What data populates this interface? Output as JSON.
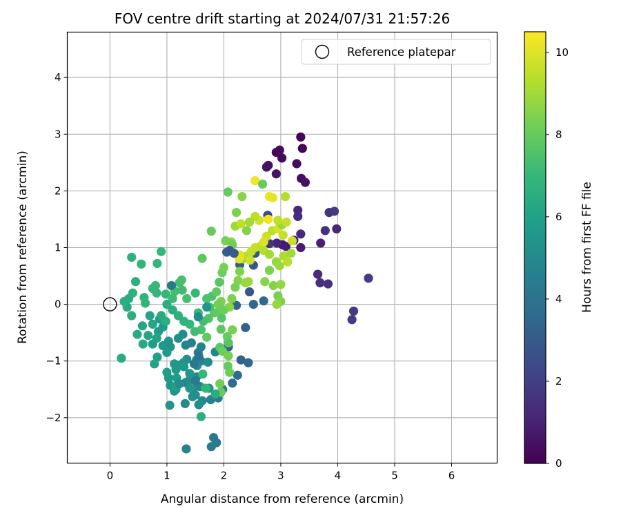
{
  "chart_data": {
    "type": "scatter",
    "title": "FOV centre drift starting at 2024/07/31 21:57:26",
    "xlabel": "Angular distance from reference (arcmin)",
    "ylabel": "Rotation from reference (arcmin)",
    "xlim": [
      -0.75,
      6.8
    ],
    "ylim": [
      -2.8,
      4.8
    ],
    "xticks": [
      "0",
      "1",
      "2",
      "3",
      "4",
      "5",
      "6"
    ],
    "yticks": [
      "−2",
      "−1",
      "0",
      "1",
      "2",
      "3",
      "4"
    ],
    "grid": true,
    "legend_position": "top-right",
    "legend": [
      {
        "label": "Reference platepar",
        "marker": "open-circle",
        "x": 0,
        "y": 0
      }
    ],
    "colorbar": {
      "label": "Hours from first FF file",
      "range": [
        0,
        10.5
      ],
      "ticks": [
        "0",
        "2",
        "4",
        "6",
        "8",
        "10"
      ],
      "colormap": "viridis"
    },
    "points": [
      [
        3.35,
        2.95,
        0.1
      ],
      [
        3.38,
        2.75,
        0.1
      ],
      [
        2.98,
        2.72,
        0.3
      ],
      [
        3.02,
        2.58,
        0.3
      ],
      [
        2.92,
        2.68,
        0.2
      ],
      [
        2.78,
        2.45,
        0.4
      ],
      [
        2.75,
        2.42,
        0.5
      ],
      [
        3.28,
        2.48,
        0.3
      ],
      [
        2.92,
        2.3,
        0.6
      ],
      [
        3.36,
        2.22,
        0.4
      ],
      [
        3.43,
        2.15,
        0.5
      ],
      [
        3.3,
        1.66,
        1.2
      ],
      [
        3.3,
        1.55,
        1.3
      ],
      [
        3.85,
        1.62,
        1.6
      ],
      [
        3.94,
        1.64,
        1.8
      ],
      [
        3.78,
        1.3,
        1.5
      ],
      [
        3.98,
        1.33,
        1.2
      ],
      [
        3.35,
        1.24,
        1.2
      ],
      [
        3.23,
        1.13,
        0.9
      ],
      [
        3.7,
        1.08,
        1.0
      ],
      [
        3.35,
        1.0,
        0.8
      ],
      [
        3.03,
        1.05,
        0.7
      ],
      [
        3.09,
        1.02,
        0.8
      ],
      [
        2.93,
        1.08,
        1.1
      ],
      [
        2.8,
        1.07,
        1.6
      ],
      [
        2.77,
        1.57,
        2.4
      ],
      [
        2.55,
        0.9,
        2.8
      ],
      [
        2.05,
        0.92,
        3.2
      ],
      [
        2.28,
        0.7,
        3.0
      ],
      [
        2.52,
        0.69,
        2.9
      ],
      [
        3.65,
        0.53,
        1.3
      ],
      [
        3.69,
        0.38,
        1.4
      ],
      [
        3.83,
        0.36,
        1.5
      ],
      [
        4.54,
        0.46,
        1.9
      ],
      [
        4.28,
        -0.12,
        1.8
      ],
      [
        4.25,
        -0.27,
        1.9
      ],
      [
        2.7,
        0.06,
        3.6
      ],
      [
        2.52,
        0.0,
        3.5
      ],
      [
        2.22,
        -0.02,
        3.4
      ],
      [
        2.38,
        -0.41,
        3.3
      ],
      [
        2.08,
        -0.75,
        3.1
      ],
      [
        2.3,
        -0.98,
        3.3
      ],
      [
        2.43,
        -1.03,
        3.5
      ],
      [
        2.24,
        -1.25,
        3.7
      ],
      [
        2.15,
        -1.39,
        3.6
      ],
      [
        1.98,
        -1.5,
        4.2
      ],
      [
        1.82,
        -2.35,
        4.3
      ],
      [
        1.87,
        -2.44,
        4.2
      ],
      [
        1.78,
        -2.51,
        4.4
      ],
      [
        1.34,
        -2.55,
        4.7
      ],
      [
        1.9,
        -1.65,
        4.4
      ],
      [
        1.77,
        -1.68,
        4.6
      ],
      [
        1.62,
        -1.7,
        5.0
      ],
      [
        1.56,
        -1.77,
        5.2
      ],
      [
        1.32,
        -1.75,
        5.0
      ],
      [
        1.05,
        -1.78,
        5.4
      ],
      [
        1.45,
        -1.63,
        5.3
      ],
      [
        1.33,
        -1.38,
        4.8
      ],
      [
        1.4,
        -1.33,
        5.2
      ],
      [
        1.52,
        -1.28,
        4.9
      ],
      [
        1.16,
        -1.5,
        5.4
      ],
      [
        1.06,
        -1.43,
        5.5
      ],
      [
        1.13,
        -1.53,
        5.5
      ],
      [
        1.03,
        -1.3,
        5.6
      ],
      [
        1.0,
        -1.2,
        5.8
      ],
      [
        1.16,
        -1.15,
        5.7
      ],
      [
        1.13,
        -1.05,
        5.5
      ],
      [
        1.24,
        -1.07,
        5.6
      ],
      [
        1.29,
        -1.03,
        5.4
      ],
      [
        1.35,
        -0.97,
        5.3
      ],
      [
        1.52,
        -0.98,
        4.9
      ],
      [
        1.6,
        -1.0,
        4.7
      ],
      [
        1.53,
        -1.08,
        5.0
      ],
      [
        1.72,
        -1.02,
        5.1
      ],
      [
        1.85,
        -0.84,
        4.8
      ],
      [
        1.6,
        -0.75,
        4.7
      ],
      [
        1.55,
        -0.85,
        4.5
      ],
      [
        1.43,
        -0.68,
        4.6
      ],
      [
        1.33,
        -0.72,
        4.8
      ],
      [
        1.28,
        -0.53,
        5.0
      ],
      [
        1.2,
        -0.6,
        5.2
      ],
      [
        1.06,
        -0.75,
        5.4
      ],
      [
        1.0,
        -0.85,
        5.6
      ],
      [
        0.83,
        -0.93,
        5.9
      ],
      [
        0.93,
        -0.73,
        5.6
      ],
      [
        1.03,
        -0.65,
        5.5
      ],
      [
        0.85,
        -0.48,
        5.8
      ],
      [
        0.93,
        -0.4,
        5.7
      ],
      [
        0.87,
        -0.26,
        5.9
      ],
      [
        0.7,
        -0.2,
        6.1
      ],
      [
        0.75,
        -0.35,
        6.2
      ],
      [
        0.57,
        -0.38,
        6.2
      ],
      [
        0.67,
        -0.55,
        6.2
      ],
      [
        0.58,
        -0.7,
        6.3
      ],
      [
        0.48,
        -0.53,
        6.4
      ],
      [
        0.38,
        -0.2,
        6.6
      ],
      [
        0.45,
        0.4,
        6.6
      ],
      [
        0.4,
        0.2,
        6.7
      ],
      [
        0.33,
        0.1,
        6.5
      ],
      [
        0.3,
        -0.05,
        6.4
      ],
      [
        0.2,
        -0.95,
        6.4
      ],
      [
        0.25,
        0.05,
        6.6
      ],
      [
        0.38,
        0.83,
        6.7
      ],
      [
        0.55,
        0.71,
        6.8
      ],
      [
        0.83,
        0.72,
        6.9
      ],
      [
        0.9,
        0.93,
        7.0
      ],
      [
        0.6,
        0.12,
        6.8
      ],
      [
        0.62,
        0.02,
        6.9
      ],
      [
        0.75,
        0.28,
        7.0
      ],
      [
        0.8,
        0.33,
        7.0
      ],
      [
        0.82,
        0.2,
        6.9
      ],
      [
        0.98,
        0.18,
        7.0
      ],
      [
        1.1,
        0.1,
        7.2
      ],
      [
        1.22,
        0.38,
        7.3
      ],
      [
        1.26,
        0.43,
        7.4
      ],
      [
        1.14,
        0.23,
        7.3
      ],
      [
        1.08,
        0.33,
        4.3
      ],
      [
        1.27,
        0.25,
        7.2
      ],
      [
        1.35,
        0.1,
        7.4
      ],
      [
        1.5,
        0.2,
        7.0
      ],
      [
        1.62,
        0.81,
        7.8
      ],
      [
        1.78,
        1.29,
        8.0
      ],
      [
        1.79,
        0.14,
        7.5
      ],
      [
        1.87,
        0.22,
        7.9
      ],
      [
        1.92,
        0.39,
        7.8
      ],
      [
        1.97,
        0.56,
        8.1
      ],
      [
        1.91,
        -0.13,
        7.9
      ],
      [
        1.96,
        -0.24,
        7.7
      ],
      [
        1.95,
        -0.44,
        7.8
      ],
      [
        2.06,
        -0.57,
        8.0
      ],
      [
        2.08,
        -0.68,
        7.7
      ],
      [
        1.93,
        -0.76,
        7.8
      ],
      [
        1.98,
        -0.83,
        8.1
      ],
      [
        2.08,
        -0.91,
        8.3
      ],
      [
        2.07,
        -1.09,
        8.0
      ],
      [
        1.93,
        -1.4,
        8.2
      ],
      [
        1.95,
        -1.55,
        8.0
      ],
      [
        2.1,
        -1.2,
        8.1
      ],
      [
        2.15,
        -0.45,
        8.3
      ],
      [
        2.14,
        0.1,
        8.4
      ],
      [
        2.2,
        0.3,
        8.3
      ],
      [
        2.25,
        0.42,
        8.5
      ],
      [
        2.28,
        0.58,
        8.5
      ],
      [
        2.38,
        0.38,
        8.8
      ],
      [
        2.43,
        0.4,
        8.9
      ],
      [
        2.33,
        0.8,
        8.8
      ],
      [
        2.4,
        0.85,
        9.3
      ],
      [
        2.48,
        0.93,
        9.6
      ],
      [
        2.46,
        0.78,
        9.7
      ],
      [
        2.28,
        0.87,
        10.0
      ],
      [
        2.27,
        0.8,
        10.1
      ],
      [
        2.55,
        1.0,
        9.6
      ],
      [
        2.65,
        1.03,
        9.5
      ],
      [
        2.7,
        0.95,
        9.3
      ],
      [
        2.8,
        0.88,
        9.1
      ],
      [
        2.92,
        0.75,
        8.8
      ],
      [
        2.98,
        0.68,
        8.9
      ],
      [
        3.05,
        0.85,
        9.2
      ],
      [
        3.12,
        0.75,
        9.4
      ],
      [
        3.18,
        0.9,
        9.0
      ],
      [
        2.8,
        0.6,
        8.4
      ],
      [
        2.72,
        0.4,
        8.6
      ],
      [
        2.87,
        0.33,
        8.5
      ],
      [
        2.95,
        0.15,
        8.3
      ],
      [
        3.0,
        0.05,
        8.5
      ],
      [
        2.93,
        0.0,
        8.8
      ],
      [
        3.0,
        0.35,
        8.8
      ],
      [
        2.75,
        1.2,
        9.7
      ],
      [
        2.7,
        1.1,
        9.9
      ],
      [
        2.62,
        1.48,
        9.8
      ],
      [
        2.85,
        1.3,
        9.4
      ],
      [
        2.95,
        1.33,
        9.9
      ],
      [
        3.02,
        1.4,
        8.9
      ],
      [
        3.1,
        1.45,
        9.6
      ],
      [
        2.95,
        1.48,
        9.5
      ],
      [
        2.55,
        1.55,
        9.4
      ],
      [
        2.45,
        1.45,
        9.0
      ],
      [
        2.4,
        1.3,
        8.5
      ],
      [
        2.2,
        1.38,
        8.9
      ],
      [
        2.3,
        1.42,
        9.5
      ],
      [
        2.13,
        1.1,
        8.6
      ],
      [
        2.03,
        1.12,
        8.3
      ],
      [
        2.15,
        1.05,
        8.2
      ],
      [
        2.0,
        0.65,
        8.3
      ],
      [
        2.22,
        1.62,
        8.4
      ],
      [
        2.07,
        1.98,
        8.0
      ],
      [
        2.32,
        1.9,
        8.6
      ],
      [
        2.55,
        2.18,
        10.3
      ],
      [
        2.68,
        2.12,
        8.0
      ],
      [
        2.8,
        1.9,
        10.2
      ],
      [
        3.08,
        1.9,
        9.3
      ],
      [
        2.78,
        1.5,
        10.3
      ],
      [
        2.86,
        1.88,
        10.1
      ],
      [
        3.04,
        1.22,
        9.6
      ],
      [
        3.2,
        1.12,
        9.7
      ],
      [
        2.1,
        -0.05,
        8.6
      ],
      [
        1.95,
        0.05,
        8.4
      ],
      [
        1.9,
        0.0,
        8.2
      ],
      [
        2.0,
        -0.1,
        8.1
      ],
      [
        1.83,
        -0.15,
        7.9
      ],
      [
        1.73,
        -0.25,
        7.6
      ],
      [
        1.75,
        -0.05,
        7.4
      ],
      [
        1.7,
        0.1,
        7.5
      ],
      [
        1.64,
        -0.3,
        7.3
      ],
      [
        1.55,
        -0.15,
        7.1
      ],
      [
        1.7,
        -0.58,
        7.9
      ],
      [
        1.6,
        -0.45,
        7.5
      ],
      [
        1.49,
        -0.48,
        7.2
      ],
      [
        1.4,
        -0.35,
        7.0
      ],
      [
        1.3,
        -0.3,
        6.8
      ],
      [
        1.2,
        -0.2,
        6.7
      ],
      [
        1.1,
        -0.1,
        6.5
      ],
      [
        1.0,
        0.0,
        6.5
      ],
      [
        0.98,
        -0.3,
        6.6
      ],
      [
        0.9,
        -0.2,
        6.4
      ],
      [
        0.82,
        -0.6,
        6.1
      ],
      [
        0.75,
        -0.7,
        5.8
      ],
      [
        0.78,
        -1.05,
        6.0
      ],
      [
        1.17,
        -1.3,
        5.8
      ],
      [
        1.15,
        -1.45,
        5.9
      ],
      [
        1.46,
        -1.5,
        5.3
      ],
      [
        1.58,
        -1.45,
        4.9
      ],
      [
        1.74,
        -1.48,
        5.4
      ],
      [
        1.4,
        -1.48,
        5.5
      ],
      [
        1.6,
        -1.98,
        6.6
      ],
      [
        1.5,
        -1.6,
        5.2
      ],
      [
        1.22,
        -1.4,
        5.1
      ],
      [
        1.4,
        -1.22,
        5.6
      ],
      [
        1.3,
        -1.1,
        5.7
      ],
      [
        1.63,
        -1.23,
        7.0
      ],
      [
        1.68,
        -1.48,
        6.9
      ],
      [
        1.85,
        -1.58,
        6.5
      ],
      [
        1.5,
        -1.35,
        4.3
      ],
      [
        1.48,
        -1.05,
        4.2
      ],
      [
        1.56,
        -0.92,
        4.0
      ],
      [
        1.55,
        -0.22,
        5.0
      ],
      [
        1.7,
        -0.05,
        5.5
      ],
      [
        2.1,
        0.95,
        2.9
      ],
      [
        2.18,
        0.9,
        3.1
      ],
      [
        2.45,
        0.22,
        2.8
      ]
    ]
  }
}
